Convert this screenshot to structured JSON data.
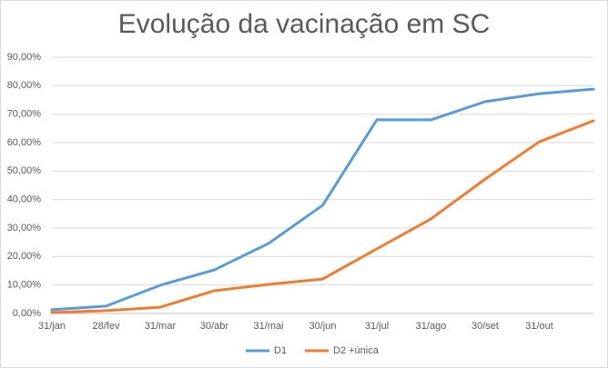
{
  "chart_data": {
    "type": "line",
    "title": "Evolução da vacinação em SC",
    "categories": [
      "31/jan",
      "28/fev",
      "31/mar",
      "30/abr",
      "31/mai",
      "30/jun",
      "31/jul",
      "31/ago",
      "30/set",
      "31/out",
      null
    ],
    "series": [
      {
        "name": "D1",
        "color": "#5b9bd5",
        "values": [
          1.3,
          2.6,
          9.9,
          15.3,
          24.6,
          38,
          68,
          68,
          74.4,
          77.2,
          78.8
        ]
      },
      {
        "name": "D2 +única",
        "color": "#ed7d31",
        "values": [
          0.3,
          1,
          2.2,
          8,
          10.2,
          12.1,
          22.7,
          33.2,
          47.2,
          60.3,
          67.7
        ]
      }
    ],
    "ylim": [
      0,
      90
    ],
    "yticks": [
      {
        "value": 0,
        "label": "0,00%"
      },
      {
        "value": 10,
        "label": "10,00%"
      },
      {
        "value": 20,
        "label": "20,00%"
      },
      {
        "value": 30,
        "label": "30,00%"
      },
      {
        "value": 40,
        "label": "40,00%"
      },
      {
        "value": 50,
        "label": "50,00%"
      },
      {
        "value": 60,
        "label": "60,00%"
      },
      {
        "value": 70,
        "label": "70,00%"
      },
      {
        "value": 80,
        "label": "80,00%"
      },
      {
        "value": 90,
        "label": "90,00%"
      }
    ],
    "grid": true,
    "legend": "bottom"
  }
}
